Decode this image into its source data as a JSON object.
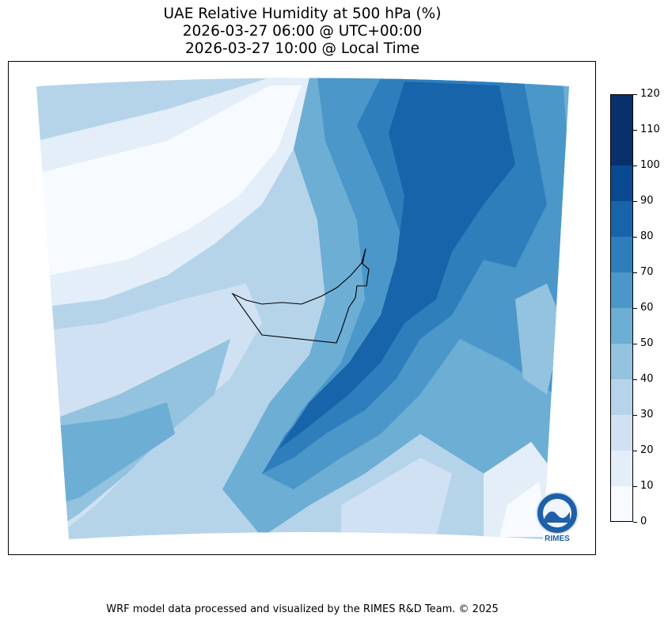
{
  "title": {
    "line1": "UAE Relative Humidity at 500 hPa (%)",
    "line2": "2026-03-27 06:00 @ UTC+00:00",
    "line3": "2026-03-27 10:00 @ Local Time"
  },
  "colorbar": {
    "ticks": [
      "0",
      "10",
      "20",
      "30",
      "40",
      "50",
      "60",
      "70",
      "80",
      "90",
      "100",
      "110",
      "120"
    ],
    "colors": [
      "#f7fbff",
      "#e3eef9",
      "#cfe1f2",
      "#b5d4e9",
      "#93c3df",
      "#6daed5",
      "#4b97c9",
      "#2f7ebc",
      "#1864aa",
      "#0a4a90",
      "#08306b",
      "#08306b"
    ]
  },
  "logo": {
    "text": "RIMES"
  },
  "footer": "WRF model data processed and visualized by the RIMES R&D Team. © 2025"
}
